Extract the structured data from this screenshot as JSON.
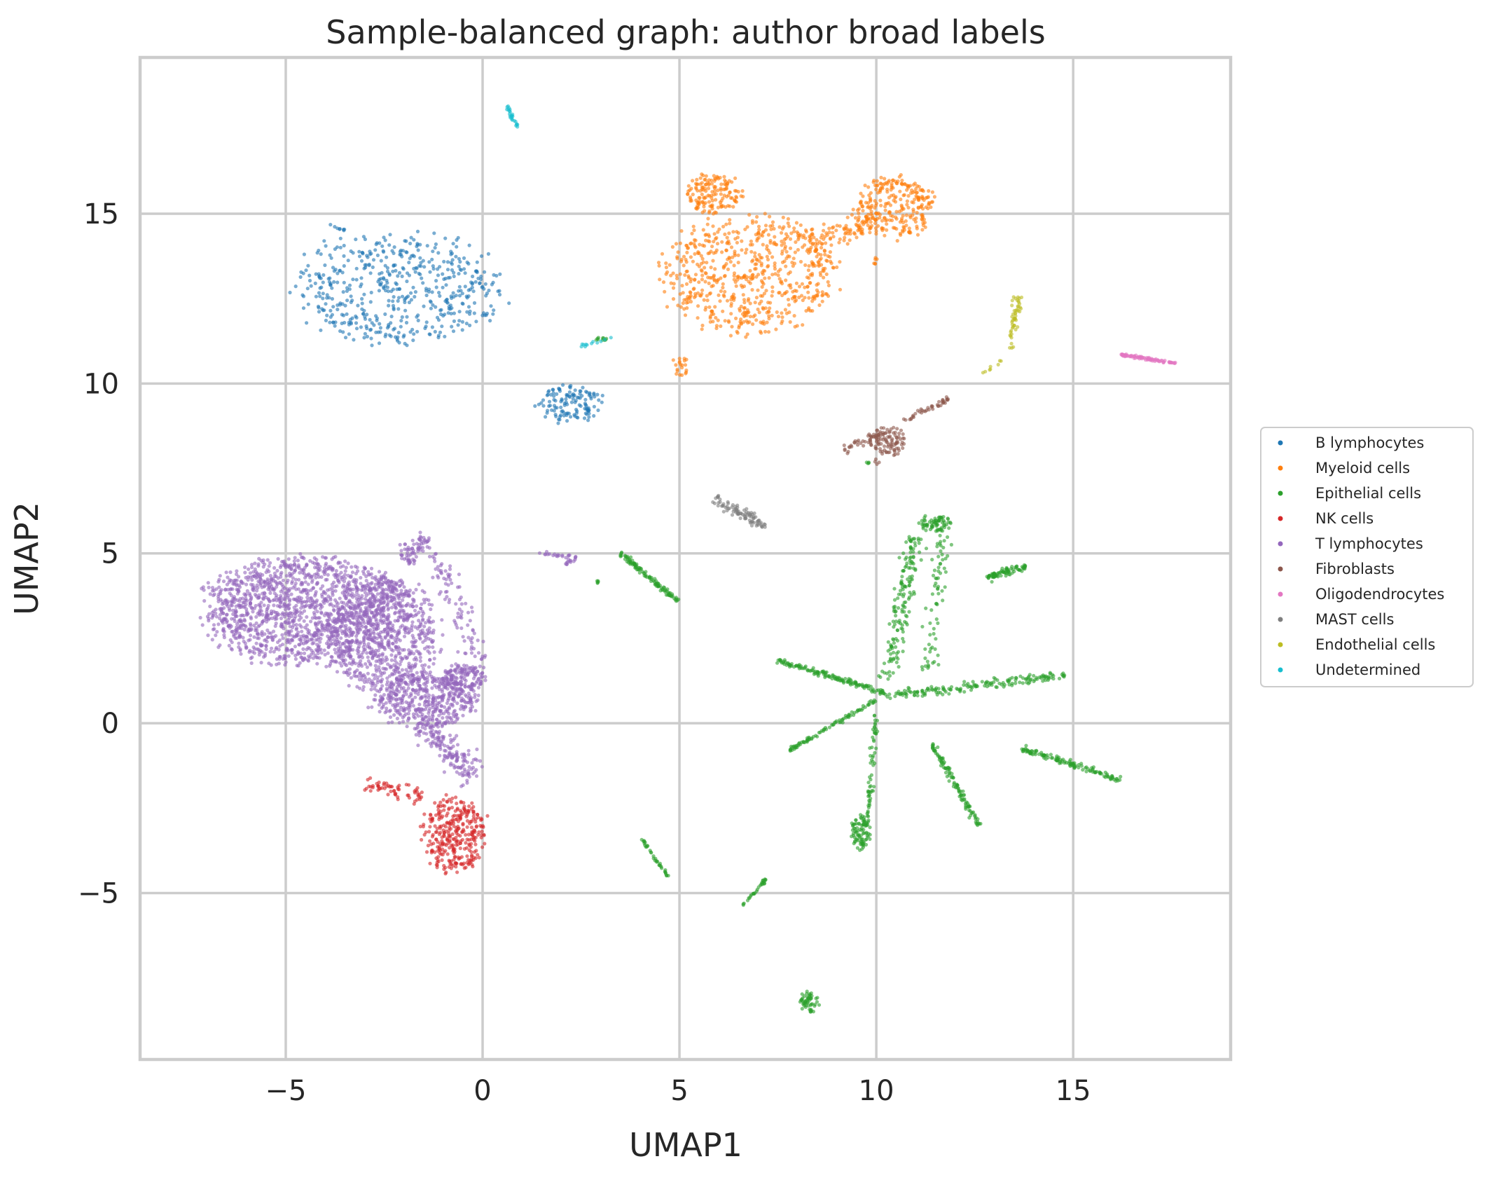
{
  "chart_data": {
    "type": "scatter",
    "title": "Sample-balanced graph: author broad labels",
    "xlabel": "UMAP1",
    "ylabel": "UMAP2",
    "xlim": [
      -8.7,
      19.0
    ],
    "ylim": [
      -9.9,
      19.6
    ],
    "xticks": [
      -5,
      0,
      5,
      10,
      15
    ],
    "yticks": [
      -5,
      0,
      5,
      10,
      15
    ],
    "xtick_labels": [
      "−5",
      "0",
      "5",
      "10",
      "15"
    ],
    "ytick_labels": [
      "−5",
      "0",
      "5",
      "10",
      "15"
    ],
    "grid": true,
    "legend_position": "right-outside",
    "series": [
      {
        "name": "B lymphocytes",
        "color": "#1f77b4",
        "clusters": [
          {
            "shape": "ellipse",
            "cx": -2.1,
            "cy": 12.8,
            "rx": 3.0,
            "ry": 1.85,
            "n": 520
          },
          {
            "shape": "ellipse",
            "cx": 2.2,
            "cy": 9.4,
            "rx": 0.95,
            "ry": 0.6,
            "n": 130
          },
          {
            "shape": "line",
            "x1": -3.9,
            "y1": 14.7,
            "x2": -3.5,
            "y2": 14.5,
            "n": 8,
            "w": 0.05
          },
          {
            "shape": "line",
            "x1": 0.0,
            "y1": 12.0,
            "x2": 0.3,
            "y2": 12.1,
            "n": 6,
            "w": 0.1
          }
        ]
      },
      {
        "name": "Myeloid cells",
        "color": "#ff7f0e",
        "clusters": [
          {
            "shape": "ellipse",
            "cx": 6.8,
            "cy": 13.2,
            "rx": 2.6,
            "ry": 1.9,
            "n": 650
          },
          {
            "shape": "ellipse",
            "cx": 5.9,
            "cy": 15.6,
            "rx": 0.8,
            "ry": 0.65,
            "n": 150
          },
          {
            "shape": "ellipse",
            "cx": 10.5,
            "cy": 15.2,
            "rx": 1.15,
            "ry": 1.0,
            "n": 260
          },
          {
            "shape": "line",
            "x1": 8.3,
            "y1": 14.1,
            "x2": 10.0,
            "y2": 14.8,
            "n": 90,
            "w": 0.35
          },
          {
            "shape": "ellipse",
            "cx": 5.0,
            "cy": 10.5,
            "rx": 0.25,
            "ry": 0.35,
            "n": 20
          },
          {
            "shape": "ellipse",
            "cx": 10.0,
            "cy": 13.6,
            "rx": 0.1,
            "ry": 0.12,
            "n": 6
          }
        ]
      },
      {
        "name": "Epithelial cells",
        "color": "#2ca02c",
        "clusters": [
          {
            "shape": "line",
            "x1": 3.5,
            "y1": 5.0,
            "x2": 4.95,
            "y2": 3.6,
            "n": 110,
            "w": 0.07
          },
          {
            "shape": "line",
            "x1": 11.0,
            "y1": 5.5,
            "x2": 10.3,
            "y2": 1.3,
            "n": 160,
            "w": 0.25
          },
          {
            "shape": "ellipse",
            "cx": 11.5,
            "cy": 5.9,
            "rx": 0.45,
            "ry": 0.3,
            "n": 70
          },
          {
            "shape": "line",
            "x1": 11.7,
            "y1": 5.8,
            "x2": 11.3,
            "y2": 1.5,
            "n": 70,
            "w": 0.22
          },
          {
            "shape": "line",
            "x1": 12.8,
            "y1": 4.3,
            "x2": 13.8,
            "y2": 4.6,
            "n": 80,
            "w": 0.12
          },
          {
            "shape": "line",
            "x1": 7.5,
            "y1": 1.85,
            "x2": 10.2,
            "y2": 0.9,
            "n": 140,
            "w": 0.08
          },
          {
            "shape": "line",
            "x1": 10.2,
            "y1": 0.8,
            "x2": 14.8,
            "y2": 1.4,
            "n": 170,
            "w": 0.14
          },
          {
            "shape": "line",
            "x1": 7.8,
            "y1": -0.8,
            "x2": 10.0,
            "y2": 0.7,
            "n": 90,
            "w": 0.06
          },
          {
            "shape": "line",
            "x1": 9.8,
            "y1": -2.8,
            "x2": 10.0,
            "y2": 0.3,
            "n": 60,
            "w": 0.08
          },
          {
            "shape": "ellipse",
            "cx": 9.6,
            "cy": -3.2,
            "rx": 0.28,
            "ry": 0.6,
            "n": 90
          },
          {
            "shape": "line",
            "x1": 11.4,
            "y1": -0.6,
            "x2": 12.6,
            "y2": -3.0,
            "n": 110,
            "w": 0.08
          },
          {
            "shape": "line",
            "x1": 13.7,
            "y1": -0.75,
            "x2": 16.2,
            "y2": -1.65,
            "n": 130,
            "w": 0.08
          },
          {
            "shape": "line",
            "x1": 4.0,
            "y1": -3.35,
            "x2": 4.7,
            "y2": -4.5,
            "n": 35,
            "w": 0.04
          },
          {
            "shape": "line",
            "x1": 6.6,
            "y1": -5.35,
            "x2": 7.2,
            "y2": -4.6,
            "n": 30,
            "w": 0.04
          },
          {
            "shape": "ellipse",
            "cx": 8.3,
            "cy": -8.2,
            "rx": 0.28,
            "ry": 0.35,
            "n": 55
          },
          {
            "shape": "ellipse",
            "cx": 2.95,
            "cy": 4.2,
            "rx": 0.06,
            "ry": 0.1,
            "n": 5
          },
          {
            "shape": "ellipse",
            "cx": 9.8,
            "cy": 7.65,
            "rx": 0.08,
            "ry": 0.08,
            "n": 4
          },
          {
            "shape": "ellipse",
            "cx": 3.0,
            "cy": 11.3,
            "rx": 0.35,
            "ry": 0.08,
            "n": 10
          }
        ]
      },
      {
        "name": "NK cells",
        "color": "#d62728",
        "clusters": [
          {
            "shape": "ellipse",
            "cx": -0.7,
            "cy": -3.3,
            "rx": 0.95,
            "ry": 1.25,
            "n": 330
          },
          {
            "shape": "line",
            "x1": -3.0,
            "y1": -1.8,
            "x2": -1.5,
            "y2": -2.2,
            "n": 60,
            "w": 0.25
          }
        ]
      },
      {
        "name": "T lymphocytes",
        "color": "#9467bd",
        "clusters": [
          {
            "shape": "ellipse",
            "cx": -4.5,
            "cy": 3.3,
            "rx": 2.9,
            "ry": 1.8,
            "n": 1500
          },
          {
            "shape": "ellipse",
            "cx": -2.5,
            "cy": 2.6,
            "rx": 1.6,
            "ry": 1.9,
            "n": 700
          },
          {
            "shape": "ellipse",
            "cx": -1.5,
            "cy": 0.7,
            "rx": 1.5,
            "ry": 0.9,
            "n": 450
          },
          {
            "shape": "ellipse",
            "cx": -0.5,
            "cy": 1.3,
            "rx": 0.6,
            "ry": 0.5,
            "n": 150
          },
          {
            "shape": "line",
            "x1": -2.0,
            "y1": 4.8,
            "x2": -1.4,
            "y2": 5.5,
            "n": 70,
            "w": 0.25
          },
          {
            "shape": "line",
            "x1": -1.6,
            "y1": 0.0,
            "x2": -0.2,
            "y2": -1.6,
            "n": 170,
            "w": 0.4
          },
          {
            "shape": "line",
            "x1": -1.2,
            "y1": 5.0,
            "x2": 0.0,
            "y2": 1.6,
            "n": 90,
            "w": 0.3
          },
          {
            "shape": "line",
            "x1": 1.4,
            "y1": 5.0,
            "x2": 2.4,
            "y2": 4.9,
            "n": 20,
            "w": 0.06
          },
          {
            "shape": "line",
            "x1": 2.0,
            "y1": 4.6,
            "x2": 2.4,
            "y2": 4.9,
            "n": 12,
            "w": 0.06
          }
        ]
      },
      {
        "name": "Fibroblasts",
        "color": "#8c564b",
        "clusters": [
          {
            "shape": "ellipse",
            "cx": 10.3,
            "cy": 8.3,
            "rx": 0.55,
            "ry": 0.5,
            "n": 90
          },
          {
            "shape": "line",
            "x1": 9.2,
            "y1": 8.0,
            "x2": 10.2,
            "y2": 8.6,
            "n": 40,
            "w": 0.15
          },
          {
            "shape": "line",
            "x1": 10.7,
            "y1": 8.9,
            "x2": 11.9,
            "y2": 9.6,
            "n": 40,
            "w": 0.08
          },
          {
            "shape": "ellipse",
            "cx": 10.0,
            "cy": 7.7,
            "rx": 0.1,
            "ry": 0.1,
            "n": 4
          }
        ]
      },
      {
        "name": "Oligodendrocytes",
        "color": "#e377c2",
        "clusters": [
          {
            "shape": "line",
            "x1": 16.2,
            "y1": 10.85,
            "x2": 17.6,
            "y2": 10.6,
            "n": 90,
            "w": 0.04
          }
        ]
      },
      {
        "name": "MAST cells",
        "color": "#7f7f7f",
        "clusters": [
          {
            "shape": "line",
            "x1": 5.9,
            "y1": 6.6,
            "x2": 7.2,
            "y2": 5.8,
            "n": 90,
            "w": 0.16
          }
        ]
      },
      {
        "name": "Endothelial cells",
        "color": "#bcbd22",
        "clusters": [
          {
            "shape": "line",
            "x1": 13.6,
            "y1": 12.6,
            "x2": 13.4,
            "y2": 11.0,
            "n": 50,
            "w": 0.1
          },
          {
            "shape": "line",
            "x1": 12.7,
            "y1": 10.3,
            "x2": 13.3,
            "y2": 10.8,
            "n": 8,
            "w": 0.05
          }
        ]
      },
      {
        "name": "Undetermined",
        "color": "#17becf",
        "clusters": [
          {
            "shape": "line",
            "x1": 0.6,
            "y1": 18.2,
            "x2": 0.9,
            "y2": 17.5,
            "n": 25,
            "w": 0.05
          },
          {
            "shape": "line",
            "x1": 2.5,
            "y1": 11.1,
            "x2": 3.4,
            "y2": 11.4,
            "n": 12,
            "w": 0.05
          }
        ]
      }
    ]
  }
}
